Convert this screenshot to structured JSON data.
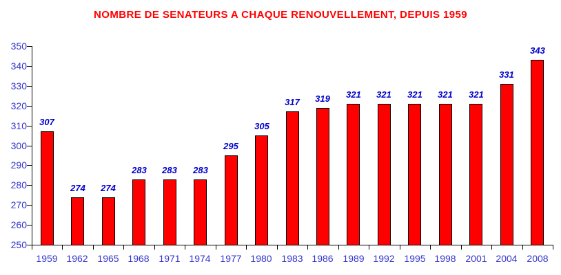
{
  "title": "NOMBRE DE SENATEURS A CHAQUE RENOUVELLEMENT, DEPUIS 1959",
  "colors": {
    "title": "#ff0000",
    "bar_fill": "#ff0000",
    "bar_border": "#000000",
    "axis": "#000000",
    "axis_tick_label": "#3333cc",
    "value_label": "#0000cc",
    "background": "#ffffff"
  },
  "chart_data": {
    "type": "bar",
    "title": "NOMBRE DE SENATEURS A CHAQUE RENOUVELLEMENT, DEPUIS 1959",
    "categories": [
      "1959",
      "1962",
      "1965",
      "1968",
      "1971",
      "1974",
      "1977",
      "1980",
      "1983",
      "1986",
      "1989",
      "1992",
      "1995",
      "1998",
      "2001",
      "2004",
      "2008"
    ],
    "values": [
      307,
      274,
      274,
      283,
      283,
      283,
      295,
      305,
      317,
      319,
      321,
      321,
      321,
      321,
      321,
      331,
      343
    ],
    "xlabel": "",
    "ylabel": "",
    "ylim": [
      250,
      350
    ],
    "ytick_step": 10,
    "grid": false,
    "legend": null,
    "value_labels": true
  }
}
